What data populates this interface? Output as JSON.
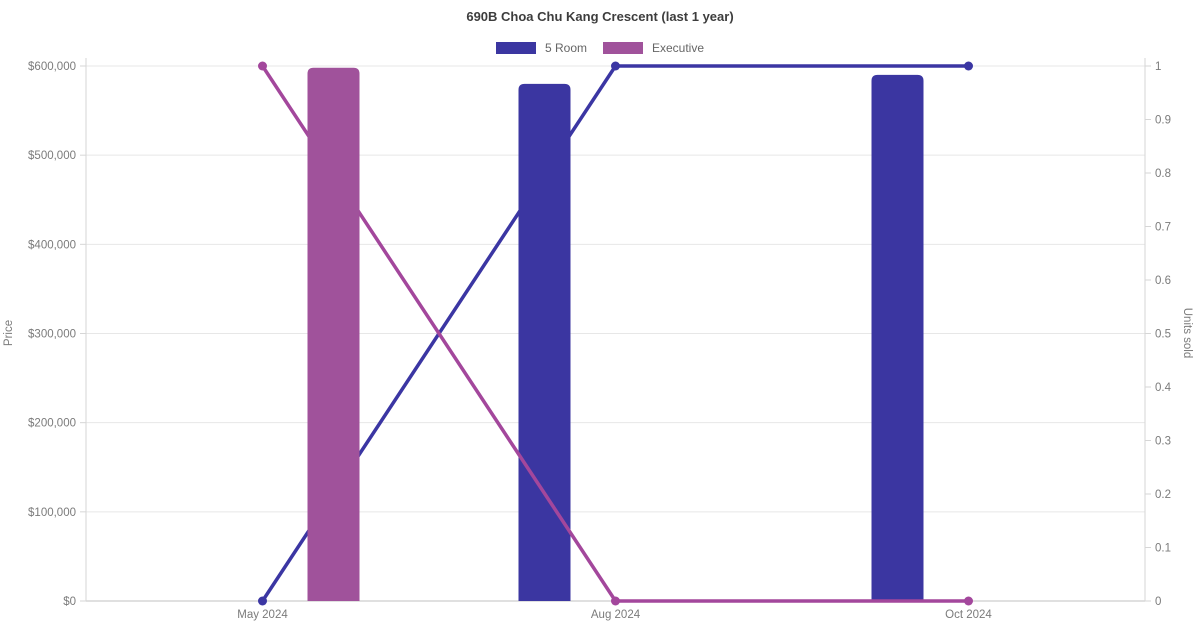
{
  "chart_data": {
    "type": "bar+line dual-axis",
    "title": "690B Choa Chu Kang Crescent (last 1 year)",
    "categories": [
      "May 2024",
      "Aug 2024",
      "Oct 2024"
    ],
    "left_axis": {
      "title": "Price",
      "min": 0,
      "max": 600000,
      "step": 100000,
      "tick_labels": [
        "$0",
        "$100,000",
        "$200,000",
        "$300,000",
        "$400,000",
        "$500,000",
        "$600,000"
      ]
    },
    "right_axis": {
      "title": "Units sold",
      "min": 0,
      "max": 1,
      "step": 0.1,
      "tick_labels": [
        "0",
        "0.1",
        "0.2",
        "0.3",
        "0.4",
        "0.5",
        "0.6",
        "0.7",
        "0.8",
        "0.9",
        "1"
      ]
    },
    "series": [
      {
        "name": "5 Room",
        "bar_color": "#3B36A1",
        "line_color": "#3B36A3",
        "bar_values_price": [
          null,
          580000,
          590000
        ],
        "line_values_units_sold": [
          0,
          1,
          1
        ]
      },
      {
        "name": "Executive",
        "bar_color": "#A0529B",
        "line_color": "#A3479C",
        "bar_values_price": [
          598000,
          null,
          null
        ],
        "line_values_units_sold": [
          1,
          0,
          0
        ]
      }
    ],
    "legend_position": "top",
    "grid": {
      "horizontal": true,
      "vertical": false
    }
  },
  "colors": {
    "background": "#ffffff",
    "grid_line": "#e7e7e7",
    "axis_line": "#d6d6d6",
    "tick_text": "#7b7b7b",
    "title_text": "#3d3d3d",
    "legend_text": "#666666"
  }
}
